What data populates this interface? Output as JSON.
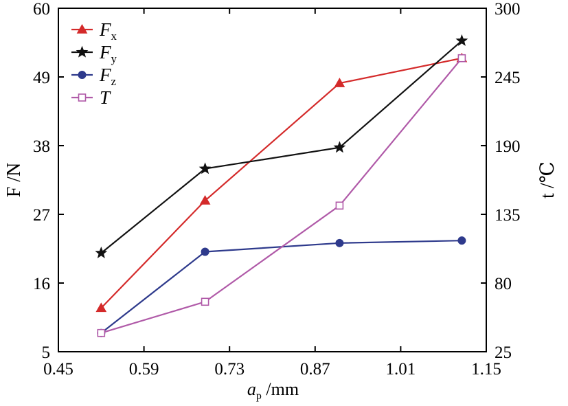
{
  "chart_data": {
    "type": "line",
    "title": "",
    "x": [
      0.52,
      0.69,
      0.91,
      1.11
    ],
    "xlabel": {
      "main": "a",
      "sub": "p",
      "unit": " /mm"
    },
    "ylabel_left": "F /N",
    "ylabel_right": "t /℃",
    "xlim": [
      0.45,
      1.15
    ],
    "ylim_left": [
      5,
      60
    ],
    "ylim_right": [
      25,
      300
    ],
    "xticks": [
      "0.45",
      "0.59",
      "0.73",
      "0.87",
      "1.01",
      "1.15"
    ],
    "yticks_left": [
      "5",
      "16",
      "27",
      "38",
      "49",
      "60"
    ],
    "yticks_right": [
      "25",
      "80",
      "135",
      "190",
      "245",
      "300"
    ],
    "grid": false,
    "legend_placement": "top-left",
    "series": [
      {
        "name": "Fx",
        "label_main": "F",
        "label_sub": "x",
        "axis": "left",
        "color": "#d42a2a",
        "marker": "filled-triangle",
        "values": [
          12.0,
          29.2,
          48.0,
          52.0
        ]
      },
      {
        "name": "Fy",
        "label_main": "F",
        "label_sub": "y",
        "axis": "left",
        "color": "#111111",
        "marker": "filled-star",
        "values": [
          20.8,
          34.3,
          37.7,
          54.8
        ]
      },
      {
        "name": "Fz",
        "label_main": "F",
        "label_sub": "z",
        "axis": "left",
        "color": "#2e3a8c",
        "marker": "filled-circle",
        "values": [
          8.0,
          21.0,
          22.4,
          22.8
        ]
      },
      {
        "name": "T",
        "label_main": "T",
        "label_sub": "",
        "axis": "right",
        "color": "#b05aa8",
        "marker": "open-square",
        "values": [
          40,
          65,
          142,
          260
        ]
      }
    ]
  }
}
